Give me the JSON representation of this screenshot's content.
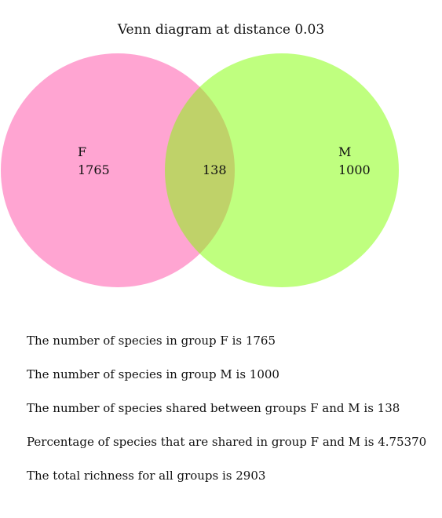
{
  "diagram": {
    "title": "Venn diagram at distance 0.03",
    "colors": {
      "group_f": "#ff69b4",
      "group_m": "#7fff00"
    },
    "sets": [
      {
        "name": "F",
        "count": "1765"
      },
      {
        "name": "M",
        "count": "1000"
      }
    ],
    "shared_count": "138"
  },
  "summary": [
    "The number of species in group F is 1765",
    "The number of species in group M is 1000",
    "The number of species shared between groups F and M is 138",
    "Percentage of species that are shared in group F and M is 4.75370",
    "The total richness for all groups is 2903"
  ]
}
